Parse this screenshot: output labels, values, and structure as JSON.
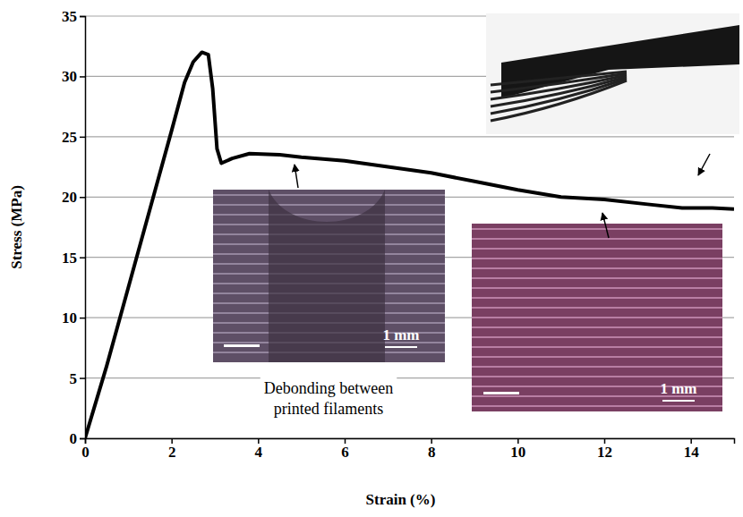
{
  "chart_data": {
    "type": "line",
    "x_label": "Strain (%)",
    "y_label": "Stress (MPa)",
    "x": [
      0,
      0.5,
      1,
      1.5,
      2,
      2.3,
      2.5,
      2.7,
      2.85,
      2.95,
      3.05,
      3.15,
      3.4,
      3.8,
      4.5,
      5,
      6,
      7,
      8,
      9,
      10,
      11,
      12,
      13,
      13.8,
      14.5,
      15
    ],
    "values": [
      0,
      6,
      12.5,
      19,
      25.5,
      29.5,
      31.2,
      32,
      31.8,
      29,
      24,
      22.8,
      23.2,
      23.6,
      23.5,
      23.3,
      23,
      22.5,
      22,
      21.3,
      20.6,
      20,
      19.8,
      19.4,
      19.1,
      19.1,
      19
    ],
    "color": "#000000",
    "line_style": "solid",
    "xlim": [
      0,
      15
    ],
    "xticks": [
      0,
      2,
      4,
      6,
      8,
      10,
      12,
      14
    ],
    "ylim": [
      0,
      35
    ],
    "yticks": [
      0,
      5,
      10,
      15,
      20,
      25,
      30,
      35
    ],
    "grid": true,
    "annotations": [
      "Debonding between printed filaments",
      "1 mm",
      "1 mm"
    ]
  }
}
